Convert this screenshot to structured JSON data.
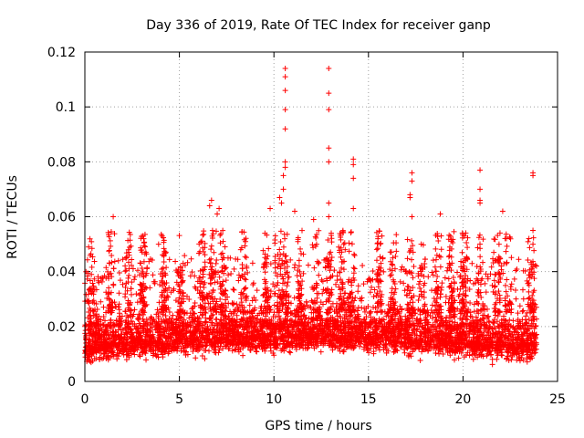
{
  "chart_data": {
    "type": "scatter",
    "title": "Day 336 of 2019, Rate Of TEC Index for receiver ganp",
    "xlabel": "GPS time / hours",
    "ylabel": "ROTI / TECUs",
    "xlim": [
      0,
      25
    ],
    "ylim": [
      0,
      0.12
    ],
    "xticks": [
      0,
      5,
      10,
      15,
      20,
      25
    ],
    "xtick_labels": [
      "0",
      "5",
      "10",
      "15",
      "20",
      "25"
    ],
    "yticks": [
      0,
      0.02,
      0.04,
      0.06,
      0.08,
      0.1,
      0.12
    ],
    "ytick_labels": [
      "0",
      "0.02",
      "0.04",
      "0.06",
      "0.08",
      "0.1",
      "0.12"
    ],
    "grid": true,
    "marker": "+",
    "series": [
      {
        "name": "ROTI",
        "color": "#ff0000",
        "note": "dense point cloud 0.005-0.04 TECU across 0-24 h; notable spikes listed",
        "points": [
          [
            10.6,
            0.114
          ],
          [
            10.6,
            0.111
          ],
          [
            10.6,
            0.106
          ],
          [
            10.6,
            0.099
          ],
          [
            10.6,
            0.092
          ],
          [
            10.6,
            0.08
          ],
          [
            10.6,
            0.078
          ],
          [
            10.5,
            0.075
          ],
          [
            10.5,
            0.07
          ],
          [
            12.9,
            0.114
          ],
          [
            12.9,
            0.105
          ],
          [
            12.9,
            0.099
          ],
          [
            12.9,
            0.085
          ],
          [
            12.9,
            0.08
          ],
          [
            12.9,
            0.065
          ],
          [
            12.9,
            0.06
          ],
          [
            14.2,
            0.081
          ],
          [
            14.2,
            0.079
          ],
          [
            14.2,
            0.074
          ],
          [
            14.2,
            0.063
          ],
          [
            17.3,
            0.076
          ],
          [
            17.3,
            0.073
          ],
          [
            17.2,
            0.068
          ],
          [
            17.2,
            0.067
          ],
          [
            17.3,
            0.06
          ],
          [
            20.9,
            0.077
          ],
          [
            20.9,
            0.07
          ],
          [
            20.9,
            0.066
          ],
          [
            20.9,
            0.065
          ],
          [
            23.7,
            0.076
          ],
          [
            23.7,
            0.075
          ],
          [
            23.7,
            0.055
          ],
          [
            23.7,
            0.05
          ],
          [
            6.7,
            0.066
          ],
          [
            6.6,
            0.064
          ],
          [
            7.1,
            0.063
          ],
          [
            7.0,
            0.061
          ],
          [
            1.5,
            0.06
          ],
          [
            10.3,
            0.067
          ],
          [
            10.4,
            0.065
          ],
          [
            9.8,
            0.063
          ],
          [
            11.1,
            0.062
          ],
          [
            12.1,
            0.059
          ],
          [
            18.8,
            0.061
          ],
          [
            22.1,
            0.062
          ],
          [
            15.5,
            0.052
          ],
          [
            3.9,
            0.05
          ],
          [
            0.2,
            0.049
          ]
        ]
      }
    ]
  }
}
